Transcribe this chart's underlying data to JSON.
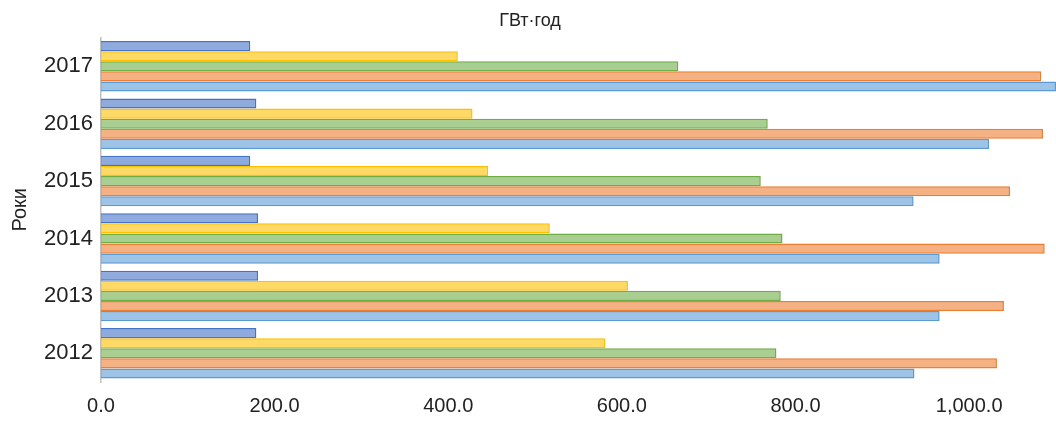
{
  "chart_data": {
    "type": "bar",
    "orientation": "horizontal",
    "title": "ГВт·год",
    "ylabel": "Роки",
    "categories": [
      "2017",
      "2016",
      "2015",
      "2014",
      "2013",
      "2012"
    ],
    "series": [
      {
        "color": "#4472c4",
        "values": [
          172,
          179,
          172,
          181,
          181,
          179
        ]
      },
      {
        "color": "#ffc000",
        "values": [
          411,
          428,
          446,
          517,
          607,
          581
        ]
      },
      {
        "color": "#70ad47",
        "values": [
          665,
          768,
          760,
          785,
          783,
          778
        ]
      },
      {
        "color": "#ed7d31",
        "values": [
          1083,
          1085,
          1047,
          1087,
          1040,
          1032
        ]
      },
      {
        "color": "#5b9bd5",
        "values": [
          1100,
          1023,
          936,
          966,
          966,
          937
        ]
      }
    ],
    "xlim": [
      0,
      1100
    ],
    "xticks": [
      {
        "value": 0,
        "label": "0.0"
      },
      {
        "value": 200,
        "label": "200.0"
      },
      {
        "value": 400,
        "label": "400.0"
      },
      {
        "value": 600,
        "label": "600.0"
      },
      {
        "value": 800,
        "label": "800.0"
      },
      {
        "value": 1000,
        "label": "1,000.0"
      }
    ],
    "grid": false,
    "legend": false
  }
}
